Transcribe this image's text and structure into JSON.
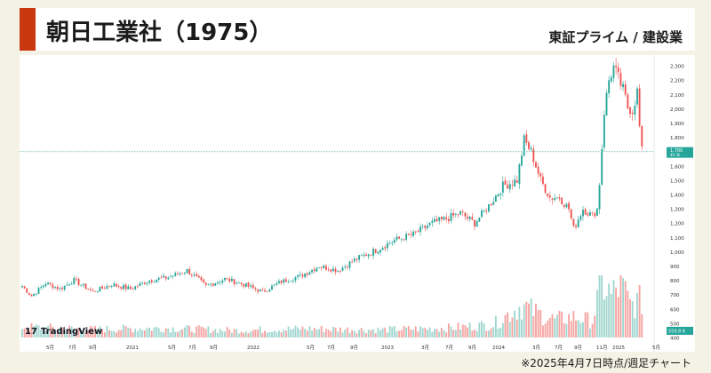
{
  "header": {
    "title": "朝日工業社（1975）",
    "market": "東証プライム / 建設業"
  },
  "footnote": "※2025年4月7日時点/週足チャート",
  "logo_text": "TradingView",
  "colors": {
    "accent": "#c9370f",
    "up": "#26a69a",
    "down": "#ef5350",
    "vol_up": "#9fd6cf",
    "vol_down": "#f5a3a1",
    "price_line": "#6fb9b2"
  },
  "chart_data": {
    "type": "candlestick",
    "title": "",
    "ylim": [
      400,
      2350
    ],
    "y_ticks": [
      "2,300",
      "2,200",
      "2,100",
      "2,000",
      "1,900",
      "1,800",
      "1,700",
      "1,600",
      "1,500",
      "1,400",
      "1,300",
      "1,200",
      "1,100",
      "1,000",
      "900",
      "800",
      "700",
      "600",
      "500",
      "400"
    ],
    "x_ticks": [
      "5月",
      "7月",
      "9月",
      "2021",
      "5月",
      "7月",
      "9月",
      "2022",
      "5月",
      "7月",
      "9月",
      "2023",
      "3月",
      "7月",
      "9月",
      "2024",
      "3月",
      "7月",
      "9月",
      "11月",
      "2025",
      "5月"
    ],
    "last_price": {
      "value": "1,700",
      "sub": "40 3h"
    },
    "volume_label": "559.8 K",
    "weeks": 252,
    "close_anchors": [
      [
        0,
        760
      ],
      [
        4,
        690
      ],
      [
        10,
        780
      ],
      [
        16,
        740
      ],
      [
        22,
        800
      ],
      [
        30,
        720
      ],
      [
        38,
        770
      ],
      [
        46,
        740
      ],
      [
        54,
        800
      ],
      [
        62,
        820
      ],
      [
        70,
        870
      ],
      [
        78,
        760
      ],
      [
        86,
        810
      ],
      [
        94,
        770
      ],
      [
        102,
        720
      ],
      [
        110,
        790
      ],
      [
        118,
        830
      ],
      [
        126,
        900
      ],
      [
        134,
        870
      ],
      [
        142,
        950
      ],
      [
        150,
        1010
      ],
      [
        158,
        1080
      ],
      [
        166,
        1120
      ],
      [
        174,
        1200
      ],
      [
        180,
        1230
      ],
      [
        186,
        1270
      ],
      [
        192,
        1200
      ],
      [
        198,
        1320
      ],
      [
        204,
        1460
      ],
      [
        210,
        1500
      ],
      [
        213,
        1780
      ],
      [
        216,
        1700
      ],
      [
        220,
        1500
      ],
      [
        224,
        1380
      ],
      [
        228,
        1380
      ],
      [
        232,
        1300
      ],
      [
        234,
        1160
      ],
      [
        238,
        1300
      ],
      [
        242,
        1250
      ],
      [
        244,
        1300
      ],
      [
        245,
        1480
      ],
      [
        247,
        1980
      ],
      [
        249,
        2200
      ],
      [
        251,
        2290
      ],
      [
        253,
        2210
      ],
      [
        255,
        2130
      ],
      [
        257,
        2010
      ],
      [
        259,
        1990
      ],
      [
        261,
        2120
      ],
      [
        262,
        1870
      ],
      [
        263,
        1700
      ]
    ],
    "volume_anchors": [
      [
        0,
        0.18
      ],
      [
        30,
        0.14
      ],
      [
        60,
        0.16
      ],
      [
        90,
        0.12
      ],
      [
        120,
        0.15
      ],
      [
        150,
        0.13
      ],
      [
        180,
        0.16
      ],
      [
        200,
        0.22
      ],
      [
        212,
        0.55
      ],
      [
        218,
        0.42
      ],
      [
        226,
        0.3
      ],
      [
        234,
        0.35
      ],
      [
        242,
        0.28
      ],
      [
        246,
        0.95
      ],
      [
        250,
        0.7
      ],
      [
        254,
        0.9
      ],
      [
        258,
        0.55
      ],
      [
        263,
        0.62
      ]
    ]
  }
}
